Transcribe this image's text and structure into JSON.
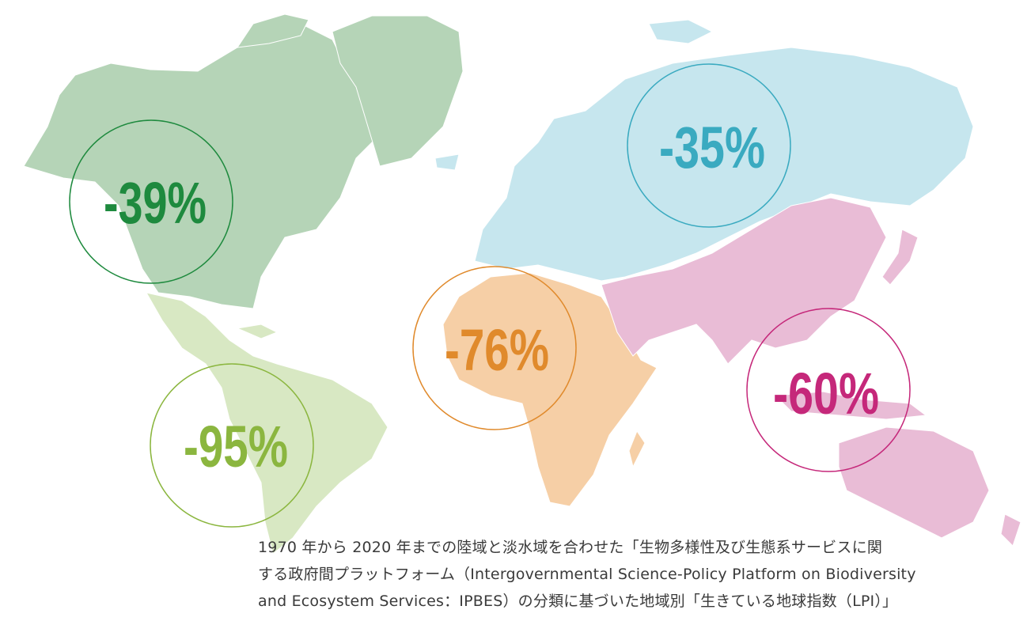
{
  "regions": [
    {
      "id": "north-america",
      "value": "-39%",
      "fill": "#b5d4b7",
      "color": "#1e8a3e"
    },
    {
      "id": "latin-america",
      "value": "-95%",
      "fill": "#d8e8c3",
      "color": "#8bb63f"
    },
    {
      "id": "africa",
      "value": "-76%",
      "fill": "#f6cfa6",
      "color": "#e08a2c"
    },
    {
      "id": "europe-central-asia",
      "value": "-35%",
      "fill": "#c6e6ee",
      "color": "#3aaac0"
    },
    {
      "id": "asia-pacific",
      "value": "-60%",
      "fill": "#e9bcd6",
      "color": "#c5287a"
    }
  ],
  "caption": {
    "line1": "1970 年から 2020 年までの陸域と淡水域を合わせた「生物多様性及び生態系サービスに関",
    "line2": "する政府間プラットフォーム（Intergovernmental Science-Policy Platform on Biodiversity",
    "line3": "and Ecosystem Services：IPBES）の分類に基づいた地域別「生きている地球指数（LPI）」"
  }
}
